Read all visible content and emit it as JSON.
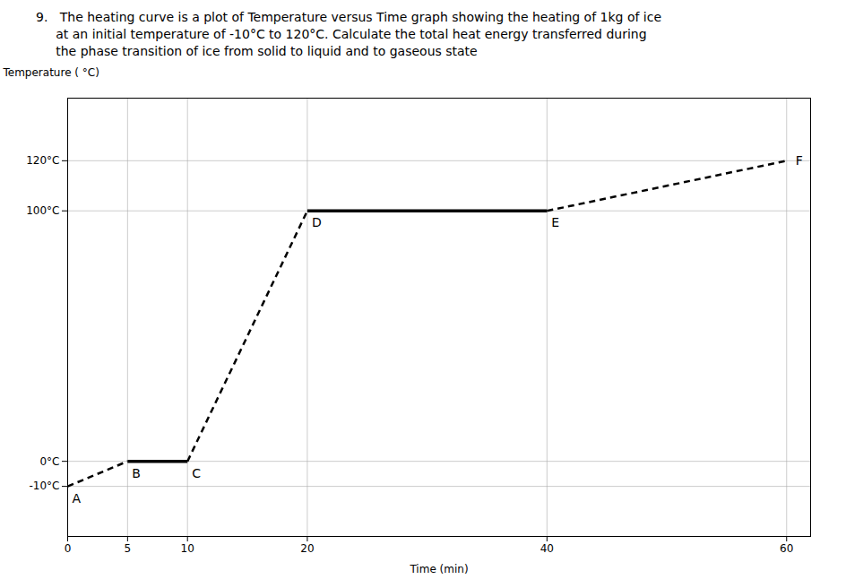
{
  "chart_data": {
    "type": "line",
    "title": [
      "9.   The heating curve is a plot of Temperature versus Time graph showing the heating of 1kg of ice",
      "     at an initial temperature of -10°C to 120°C. Calculate the total heat energy transferred during",
      "     the phase transition of ice from solid to liquid and to gaseous state"
    ],
    "xlabel": "Time (min)",
    "ylabel": "Temperature ( °C)",
    "xlim": [
      0,
      62
    ],
    "ylim": [
      -30,
      145
    ],
    "xticks": [
      0,
      5,
      10,
      20,
      40,
      60
    ],
    "yticks": [
      {
        "value": -10,
        "label": "-10°C"
      },
      {
        "value": 0,
        "label": "0°C"
      },
      {
        "value": 100,
        "label": "100°C"
      },
      {
        "value": 120,
        "label": "120°C"
      }
    ],
    "grid": true,
    "color": "#000000",
    "series": [
      {
        "x": [
          0,
          5
        ],
        "values": [
          -10,
          0
        ],
        "line_style": "dashed"
      },
      {
        "x": [
          5,
          10
        ],
        "values": [
          0,
          0
        ],
        "line_style": "solid"
      },
      {
        "x": [
          10,
          20
        ],
        "values": [
          0,
          100
        ],
        "line_style": "dashed"
      },
      {
        "x": [
          20,
          40
        ],
        "values": [
          100,
          100
        ],
        "line_style": "solid"
      },
      {
        "x": [
          40,
          60
        ],
        "values": [
          100,
          120
        ],
        "line_style": "dashed"
      }
    ],
    "annotations": [
      {
        "text": "A",
        "x": 0,
        "y": -10
      },
      {
        "text": "B",
        "x": 5,
        "y": 0
      },
      {
        "text": "C",
        "x": 10,
        "y": 0
      },
      {
        "text": "D",
        "x": 20,
        "y": 100
      },
      {
        "text": "E",
        "x": 40,
        "y": 100
      },
      {
        "text": "F",
        "x": 60,
        "y": 120
      }
    ]
  }
}
